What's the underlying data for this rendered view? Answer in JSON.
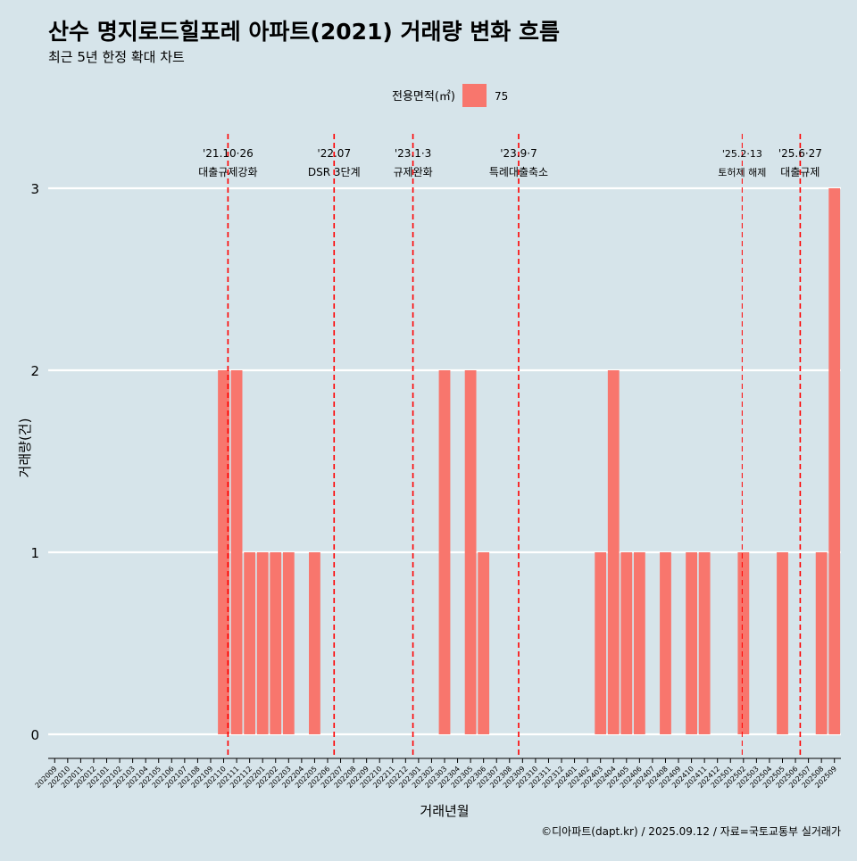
{
  "colors": {
    "background": "#d6e4ea",
    "bar": "#f8766d",
    "event_line": "#ff0000",
    "grid": "#ffffff",
    "text": "#000000"
  },
  "chart_data": {
    "type": "bar",
    "title": "산수 명지로드힐포레 아파트(2021) 거래량 변화 흐름",
    "subtitle": "최근 5년 한정 확대 차트",
    "xlabel": "거래년월",
    "ylabel": "거래량(건)",
    "caption": "©디아파트(dapt.kr) / 2025.09.12 / 자료=국토교통부 실거래가",
    "legend": {
      "title": "전용면적(㎡)",
      "position": "top",
      "items": [
        {
          "label": "75",
          "color": "#f8766d"
        }
      ]
    },
    "ylim": [
      0,
      3
    ],
    "yticks": [
      0,
      1,
      2,
      3
    ],
    "grid": "horizontal",
    "categories": [
      "202009",
      "202010",
      "202011",
      "202012",
      "202101",
      "202102",
      "202103",
      "202104",
      "202105",
      "202106",
      "202107",
      "202108",
      "202109",
      "202110",
      "202111",
      "202112",
      "202201",
      "202202",
      "202203",
      "202204",
      "202205",
      "202206",
      "202207",
      "202208",
      "202209",
      "202210",
      "202211",
      "202212",
      "202301",
      "202302",
      "202303",
      "202304",
      "202305",
      "202306",
      "202307",
      "202308",
      "202309",
      "202310",
      "202311",
      "202312",
      "202401",
      "202402",
      "202403",
      "202404",
      "202405",
      "202406",
      "202407",
      "202408",
      "202409",
      "202410",
      "202411",
      "202412",
      "202501",
      "202502",
      "202503",
      "202504",
      "202505",
      "202506",
      "202507",
      "202508",
      "202509"
    ],
    "series": [
      {
        "name": "75",
        "values": [
          0,
          0,
          0,
          0,
          0,
          0,
          0,
          0,
          0,
          0,
          0,
          0,
          0,
          2,
          2,
          1,
          1,
          1,
          1,
          0,
          1,
          0,
          0,
          0,
          0,
          0,
          0,
          0,
          0,
          0,
          2,
          0,
          2,
          1,
          0,
          0,
          0,
          0,
          0,
          0,
          0,
          0,
          1,
          2,
          1,
          1,
          0,
          1,
          0,
          1,
          1,
          0,
          0,
          1,
          0,
          0,
          1,
          0,
          0,
          1,
          3
        ]
      }
    ],
    "events": [
      {
        "date": "2021-10-26",
        "label1": "'21.10·26",
        "label2": "대출규제강화"
      },
      {
        "date": "2022-07-01",
        "label1": "'22.07",
        "label2": "DSR 3단계"
      },
      {
        "date": "2023-01-03",
        "label1": "'23.1·3",
        "label2": "규제완화"
      },
      {
        "date": "2023-09-07",
        "label1": "'23.9·7",
        "label2": "특례대출축소"
      },
      {
        "date": "2025-02-13",
        "label1": "'25.2·13",
        "label2": "토허제 해제"
      },
      {
        "date": "2025-06-27",
        "label1": "'25.6·27",
        "label2": "대출규제"
      }
    ]
  }
}
